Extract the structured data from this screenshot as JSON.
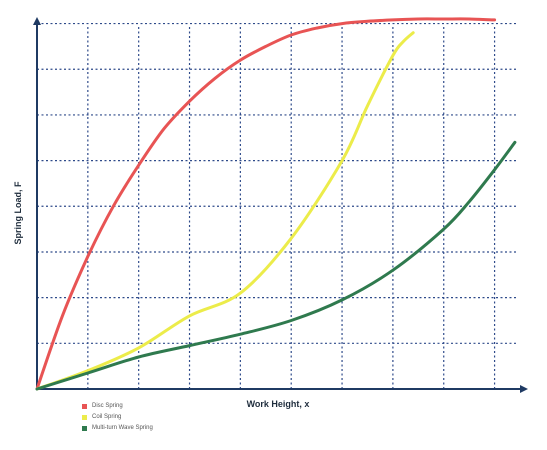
{
  "chart_data": {
    "type": "line",
    "xlabel": "Work Height, x",
    "ylabel": "Spring Load, F",
    "xlim": [
      0,
      9.5
    ],
    "ylim": [
      0,
      8.1
    ],
    "x_ticks": [
      1,
      2,
      3,
      4,
      5,
      6,
      7,
      8,
      9
    ],
    "y_ticks": [
      1,
      2,
      3,
      4,
      5,
      6,
      7,
      8
    ],
    "grid": true,
    "tick_labels": false,
    "legend_position": "bottom-left",
    "colors": {
      "axis": "#1f3a63",
      "grid": "#2e4a8a",
      "disc": "#e85454",
      "coil": "#ecec4a",
      "wave": "#2f7a4e"
    },
    "series": [
      {
        "name": "Disc Spring",
        "color": "#e85454",
        "points": [
          [
            0,
            0
          ],
          [
            0.5,
            1.6
          ],
          [
            1,
            2.9
          ],
          [
            1.5,
            4.0
          ],
          [
            2,
            4.9
          ],
          [
            2.5,
            5.7
          ],
          [
            3,
            6.3
          ],
          [
            3.5,
            6.8
          ],
          [
            4,
            7.2
          ],
          [
            4.5,
            7.5
          ],
          [
            5,
            7.75
          ],
          [
            5.5,
            7.9
          ],
          [
            6,
            8.0
          ],
          [
            6.5,
            8.05
          ],
          [
            7,
            8.08
          ],
          [
            7.5,
            8.1
          ],
          [
            8,
            8.1
          ],
          [
            8.5,
            8.1
          ],
          [
            9,
            8.08
          ]
        ]
      },
      {
        "name": "Coil Spring",
        "color": "#ecec4a",
        "points": [
          [
            0,
            0
          ],
          [
            1,
            0.4
          ],
          [
            2,
            0.9
          ],
          [
            3,
            1.6
          ],
          [
            4,
            2.1
          ],
          [
            5,
            3.3
          ],
          [
            6,
            5.0
          ],
          [
            6.5,
            6.2
          ],
          [
            7,
            7.3
          ],
          [
            7.2,
            7.6
          ],
          [
            7.4,
            7.8
          ]
        ]
      },
      {
        "name": "Multi-turn Wave Spring",
        "color": "#2f7a4e",
        "points": [
          [
            0,
            0
          ],
          [
            1,
            0.35
          ],
          [
            2,
            0.7
          ],
          [
            3,
            0.95
          ],
          [
            4,
            1.2
          ],
          [
            5,
            1.5
          ],
          [
            6,
            1.95
          ],
          [
            7,
            2.6
          ],
          [
            8,
            3.5
          ],
          [
            8.5,
            4.1
          ],
          [
            9,
            4.8
          ],
          [
            9.4,
            5.4
          ]
        ]
      }
    ]
  }
}
